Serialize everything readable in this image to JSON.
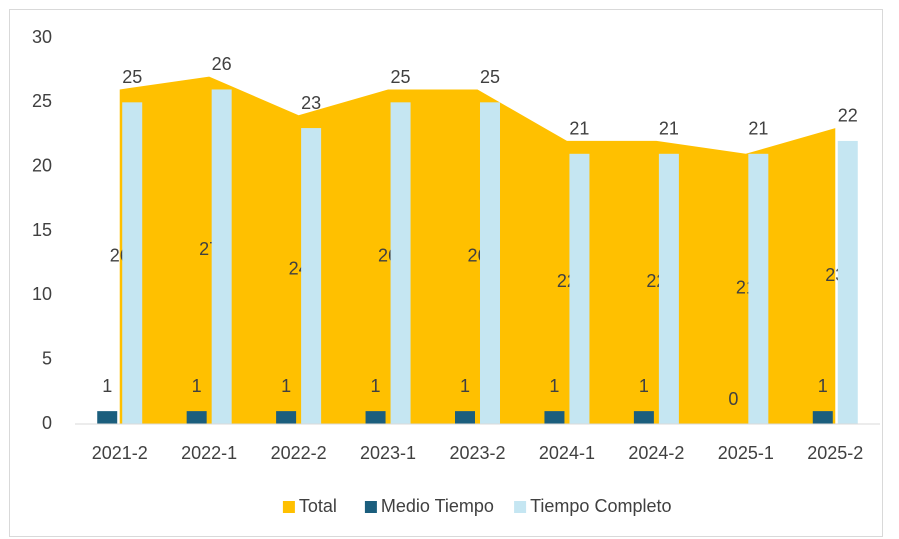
{
  "chart_data": {
    "type": "combo",
    "categories": [
      "2021-2",
      "2022-1",
      "2022-2",
      "2023-1",
      "2023-2",
      "2024-1",
      "2024-2",
      "2025-1",
      "2025-2"
    ],
    "series": [
      {
        "name": "Total",
        "type": "area",
        "color": "#ffc000",
        "values": [
          26,
          27,
          24,
          26,
          26,
          22,
          22,
          21,
          23
        ]
      },
      {
        "name": "Medio Tiempo",
        "type": "bar",
        "color": "#1b5e7d",
        "values": [
          1,
          1,
          1,
          1,
          1,
          1,
          1,
          0,
          1
        ]
      },
      {
        "name": "Tiempo Completo",
        "type": "bar",
        "color": "#c5e6f2",
        "values": [
          25,
          26,
          23,
          25,
          25,
          21,
          21,
          21,
          22
        ]
      }
    ],
    "ylim": [
      0,
      30
    ],
    "yticks": [
      0,
      5,
      10,
      15,
      20,
      25,
      30
    ],
    "grid": false,
    "legend": "bottom"
  }
}
